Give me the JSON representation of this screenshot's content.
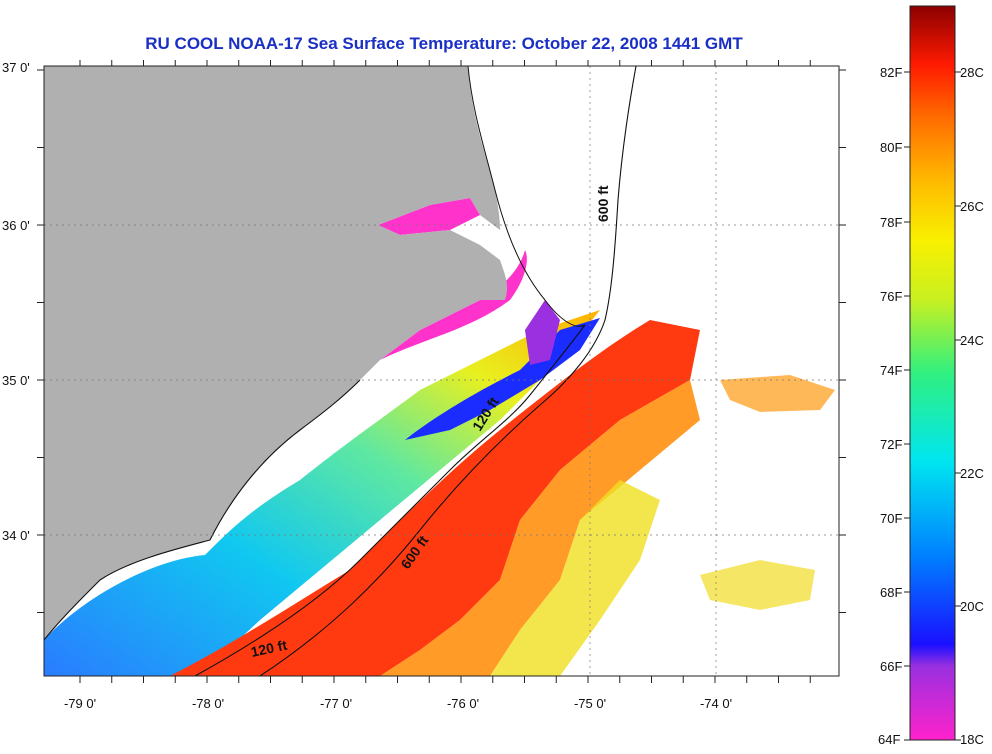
{
  "title": "RU COOL  NOAA-17  Sea Surface Temperature:  October 22, 2008 1441 GMT",
  "map": {
    "lon_range": [
      -79.3,
      -73.2
    ],
    "lat_range": [
      33.1,
      37.0
    ],
    "lon_ticks": [
      "-79 0'",
      "-78 0'",
      "-77 0'",
      "-76 0'",
      "-75 0'",
      "-74 0'"
    ],
    "lat_ticks": [
      "37 0'",
      "36 0'",
      "35 0'",
      "34 0'"
    ],
    "land_color": "#b0b0b0",
    "cloud_color": "#ffffff",
    "contours": [
      {
        "label": "120 ft"
      },
      {
        "label": "600 ft"
      },
      {
        "label": "120 ft"
      },
      {
        "label": "600 ft"
      }
    ]
  },
  "colorbar": {
    "fahrenheit_labels": [
      "82F",
      "80F",
      "78F",
      "76F",
      "74F",
      "72F",
      "70F",
      "68F",
      "66F",
      "64F"
    ],
    "celsius_labels": [
      "28C",
      "26C",
      "24C",
      "22C",
      "20C",
      "18C"
    ],
    "colors": [
      "#ff22cc",
      "#8a2ee0",
      "#1a10ff",
      "#0066ff",
      "#00b6ff",
      "#00e6f0",
      "#30f080",
      "#b8f020",
      "#f8f000",
      "#ffbb00",
      "#ff7a00",
      "#ff2a00",
      "#e00000",
      "#8c0000"
    ]
  }
}
